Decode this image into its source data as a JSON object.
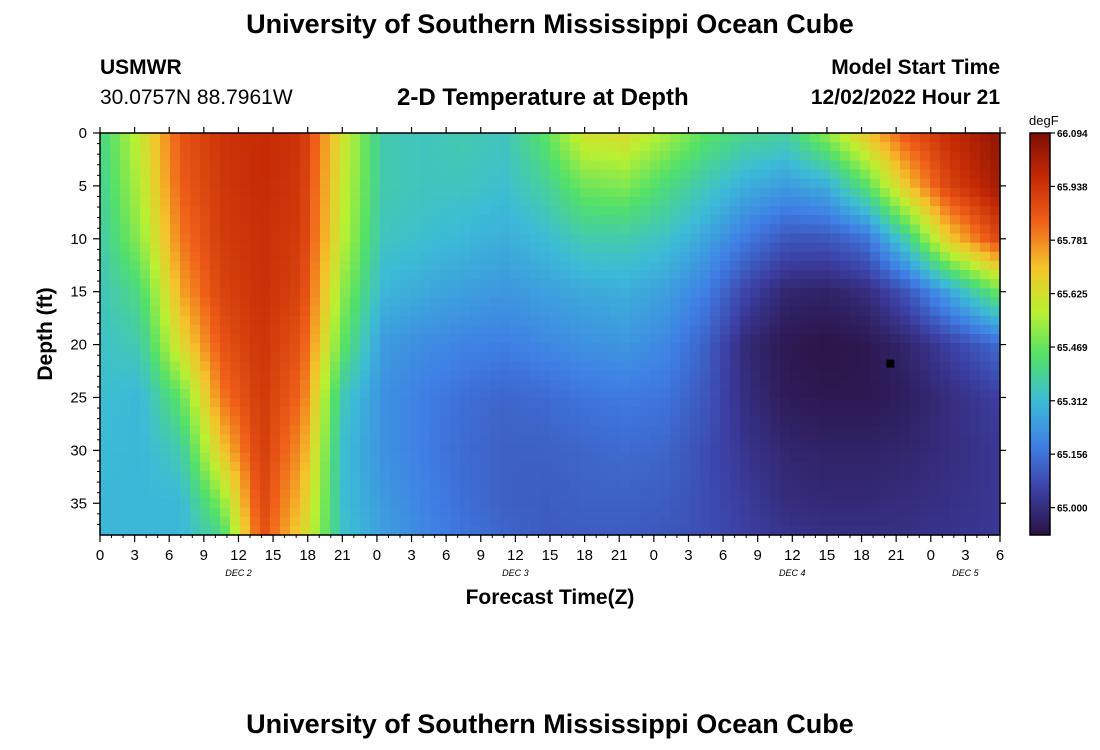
{
  "page": {
    "title": "University of Southern Mississippi Ocean Cube",
    "station_id": "USMWR",
    "station_coords": "30.0757N  88.7961W",
    "plot_title": "2-D Temperature at Depth",
    "model_start_label": "Model Start Time",
    "model_start_value": "12/02/2022 Hour 21",
    "footer_title": "University of Southern Mississippi Ocean Cube"
  },
  "chart_data": {
    "type": "heatmap",
    "title": "2-D Temperature at Depth",
    "xlabel": "Forecast Time(Z)",
    "ylabel": "Depth (ft)",
    "x_tick_labels": [
      "0",
      "3",
      "6",
      "9",
      "12",
      "15",
      "18",
      "21",
      "0",
      "3",
      "6",
      "9",
      "12",
      "15",
      "18",
      "21",
      "0",
      "3",
      "6",
      "9",
      "12",
      "15",
      "18",
      "21",
      "0",
      "3",
      "6"
    ],
    "x_hours": [
      0,
      78
    ],
    "x_day_labels": [
      {
        "label": "DEC 2",
        "hour": 12
      },
      {
        "label": "DEC 3",
        "hour": 36
      },
      {
        "label": "DEC 4",
        "hour": 60
      },
      {
        "label": "DEC 5",
        "hour": 75
      }
    ],
    "y_ticks": [
      0,
      5,
      10,
      15,
      20,
      25,
      30,
      35
    ],
    "ylim": [
      0,
      38
    ],
    "y_inverted": true,
    "colorbar": {
      "unit": "degF",
      "min": 64.92,
      "max": 66.094,
      "tick_values": [
        66.094,
        65.938,
        65.781,
        65.625,
        65.469,
        65.312,
        65.156,
        65.0
      ],
      "tick_labels": [
        "66.094",
        "65.938",
        "65.781",
        "65.625",
        "65.469",
        "65.312",
        "65.156",
        "65.000"
      ],
      "colors": [
        "#2a1142",
        "#3c3fa3",
        "#3f7fe5",
        "#3cbcd6",
        "#52e06a",
        "#b9f032",
        "#f5c32b",
        "#f06019",
        "#c52a05",
        "#7e0e02"
      ]
    },
    "columns_hours": [
      0,
      3,
      6,
      9,
      12,
      15,
      18,
      21,
      24,
      27,
      30,
      33,
      36,
      39,
      42,
      45,
      48,
      51,
      54,
      57,
      60,
      63,
      66,
      69,
      72,
      75,
      78
    ],
    "rows_depth_ft": [
      0,
      5,
      10,
      15,
      20,
      25,
      30,
      35,
      38
    ],
    "values_degF": [
      [
        65.4,
        65.6,
        65.86,
        65.94,
        65.96,
        65.94,
        65.62,
        65.36,
        65.34,
        65.36,
        65.34,
        65.45,
        65.62,
        65.64,
        65.55,
        65.45,
        65.4,
        65.38,
        65.52,
        65.7,
        65.86,
        65.96,
        66.06
      ],
      [
        65.38,
        65.57,
        65.84,
        65.93,
        65.96,
        65.93,
        65.6,
        65.36,
        65.34,
        65.34,
        65.32,
        65.38,
        65.48,
        65.5,
        65.42,
        65.35,
        65.28,
        65.24,
        65.28,
        65.45,
        65.7,
        65.9,
        66.03
      ],
      [
        65.36,
        65.52,
        65.8,
        65.92,
        65.95,
        65.92,
        65.58,
        65.34,
        65.32,
        65.3,
        65.28,
        65.31,
        65.36,
        65.36,
        65.33,
        65.26,
        65.17,
        65.1,
        65.1,
        65.16,
        65.38,
        65.68,
        65.9
      ],
      [
        65.34,
        65.42,
        65.74,
        65.9,
        65.95,
        65.9,
        65.52,
        65.3,
        65.27,
        65.25,
        65.23,
        65.25,
        65.27,
        65.28,
        65.25,
        65.18,
        65.06,
        64.98,
        64.97,
        65.0,
        65.1,
        65.26,
        65.48
      ],
      [
        65.33,
        65.36,
        65.64,
        65.86,
        65.94,
        65.86,
        65.46,
        65.24,
        65.21,
        65.19,
        65.18,
        65.2,
        65.22,
        65.23,
        65.2,
        65.12,
        64.99,
        64.94,
        64.93,
        64.94,
        64.98,
        65.05,
        65.14
      ],
      [
        65.32,
        65.3,
        65.46,
        65.8,
        65.93,
        65.82,
        65.35,
        65.22,
        65.18,
        65.15,
        65.13,
        65.14,
        65.16,
        65.17,
        65.16,
        65.1,
        65.0,
        64.95,
        64.94,
        64.94,
        64.96,
        65.0,
        65.05
      ],
      [
        65.31,
        65.3,
        65.36,
        65.68,
        65.92,
        65.76,
        65.32,
        65.22,
        65.18,
        65.14,
        65.12,
        65.12,
        65.13,
        65.14,
        65.13,
        65.08,
        65.02,
        64.98,
        64.97,
        64.97,
        64.98,
        65.0,
        65.03
      ],
      [
        65.3,
        65.3,
        65.3,
        65.5,
        65.9,
        65.7,
        65.32,
        65.24,
        65.19,
        65.15,
        65.12,
        65.11,
        65.12,
        65.12,
        65.11,
        65.08,
        65.04,
        65.0,
        64.99,
        64.99,
        65.0,
        65.01,
        65.03
      ],
      [
        65.3,
        65.3,
        65.3,
        65.4,
        65.88,
        65.66,
        65.33,
        65.25,
        65.2,
        65.16,
        65.13,
        65.11,
        65.11,
        65.11,
        65.1,
        65.08,
        65.05,
        65.02,
        65.01,
        65.01,
        65.01,
        65.02,
        65.03
      ]
    ],
    "values_grid_hours": [
      0,
      3.5,
      7,
      10.5,
      14,
      17.5,
      21,
      24.5,
      28,
      31.5,
      35,
      38.5,
      42,
      45.5,
      49,
      52.5,
      56,
      59.5,
      63,
      66.5,
      70,
      73.5,
      78
    ],
    "marker": {
      "hour": 68.5,
      "depth_ft": 21.8
    }
  }
}
